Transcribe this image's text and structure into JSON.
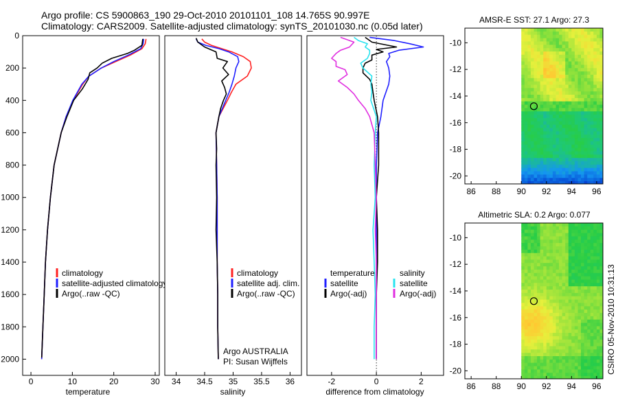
{
  "header": {
    "title_line1": "Argo profile: CS 5900863_190 29-Oct-2010 20101101_108 14.765S 90.997E",
    "title_line2": "Climatology: CARS2009. Satellite-adjusted climatology: synTS_20101030.nc (0.05d later)"
  },
  "colors": {
    "red": "#ff2020",
    "blue": "#1f1fff",
    "black": "#000000",
    "cyan": "#29e3ef",
    "magenta": "#e02ee0"
  },
  "depth_ticks": [
    "0",
    "200",
    "400",
    "600",
    "800",
    "1000",
    "1200",
    "1400",
    "1600",
    "1800",
    "2000"
  ],
  "chart_data": [
    {
      "type": "line",
      "id": "temperature",
      "xlabel": "temperature",
      "xlim": [
        -2,
        31
      ],
      "ylim": [
        2100,
        0
      ],
      "xticks": [
        "0",
        "10",
        "20",
        "30"
      ],
      "legend": [
        "climatology",
        "satellite-adjusted climatology",
        "Argo(..raw -QC)"
      ],
      "series": [
        {
          "name": "climatology",
          "color": "red",
          "depth": [
            20,
            50,
            80,
            120,
            160,
            200,
            250,
            300,
            400,
            500,
            600,
            800,
            1000,
            1200,
            1400,
            1600,
            1800,
            2000
          ],
          "x": [
            27.8,
            27.6,
            26.8,
            24.0,
            20.5,
            17.0,
            14.0,
            12.5,
            10.2,
            8.5,
            7.3,
            5.6,
            4.7,
            4.0,
            3.5,
            3.2,
            2.9,
            2.6
          ]
        },
        {
          "name": "satellite-adjusted climatology",
          "color": "blue",
          "depth": [
            20,
            50,
            80,
            120,
            160,
            200,
            250,
            300,
            400,
            500,
            600,
            800,
            1000,
            1200,
            1400,
            1600,
            1800,
            2000
          ],
          "x": [
            27.2,
            27.1,
            26.5,
            23.5,
            20.0,
            17.0,
            14.0,
            12.3,
            10.1,
            8.5,
            7.3,
            5.6,
            4.7,
            4.0,
            3.5,
            3.2,
            2.9,
            2.6
          ]
        },
        {
          "name": "Argo(..raw -QC)",
          "color": "black",
          "depth": [
            20,
            60,
            90,
            110,
            140,
            170,
            200,
            230,
            270,
            330,
            400,
            500,
            600,
            800,
            1000,
            1200,
            1400,
            1600,
            1800,
            1990
          ],
          "x": [
            27.0,
            26.8,
            25.0,
            23.3,
            19.5,
            17.2,
            16.0,
            14.2,
            13.8,
            12.4,
            10.3,
            8.7,
            7.3,
            5.6,
            4.7,
            4.0,
            3.5,
            3.2,
            2.9,
            2.6
          ]
        }
      ]
    },
    {
      "type": "line",
      "id": "salinity",
      "xlabel": "salinity",
      "xlim": [
        33.8,
        36.2
      ],
      "ylim": [
        2100,
        0
      ],
      "xticks": [
        "34",
        "34.5",
        "35",
        "35.5",
        "36"
      ],
      "legend": [
        "climatology",
        "satellite adj. clim.",
        "Argo(..raw -QC)"
      ],
      "note_line1": "Argo AUSTRALIA",
      "note_line2": "PI: Susan Wijffels",
      "series": [
        {
          "name": "climatology",
          "color": "red",
          "depth": [
            20,
            40,
            60,
            80,
            100,
            130,
            160,
            200,
            250,
            300,
            350,
            400,
            500,
            600,
            800,
            1000,
            1200,
            1400,
            1600,
            1800,
            2000
          ],
          "x": [
            34.45,
            34.5,
            34.62,
            34.8,
            34.98,
            35.18,
            35.3,
            35.32,
            35.25,
            35.05,
            34.97,
            34.9,
            34.75,
            34.7,
            34.71,
            34.72,
            34.72,
            34.72,
            34.73,
            34.73,
            34.74
          ]
        },
        {
          "name": "satellite adj. clim.",
          "color": "blue",
          "depth": [
            20,
            40,
            60,
            80,
            100,
            130,
            160,
            200,
            250,
            300,
            350,
            400,
            500,
            600,
            800,
            1000,
            1200,
            1400,
            1600,
            1800,
            2000
          ],
          "x": [
            34.35,
            34.38,
            34.52,
            34.75,
            34.92,
            35.08,
            35.1,
            35.05,
            35.02,
            34.98,
            34.93,
            34.87,
            34.75,
            34.7,
            34.71,
            34.72,
            34.72,
            34.72,
            34.73,
            34.73,
            34.74
          ]
        },
        {
          "name": "Argo(..raw -QC)",
          "color": "black",
          "depth": [
            15,
            40,
            70,
            100,
            140,
            160,
            200,
            240,
            280,
            320,
            360,
            400,
            450,
            500,
            600,
            700,
            800,
            1000,
            1200,
            1400,
            1600,
            1800,
            2000
          ],
          "x": [
            34.35,
            34.38,
            34.5,
            34.7,
            34.72,
            34.9,
            34.82,
            34.92,
            34.8,
            34.85,
            34.88,
            34.83,
            34.78,
            34.75,
            34.7,
            34.71,
            34.7,
            34.71,
            34.7,
            34.72,
            34.73,
            34.73,
            34.74
          ]
        }
      ]
    },
    {
      "type": "line",
      "id": "difference",
      "xlabel": "difference from climatology",
      "xlim": [
        -3.1,
        3.0
      ],
      "ylim": [
        2100,
        0
      ],
      "xticks": [
        "-2",
        "0",
        "2"
      ],
      "legend_temperature_title": "temperature",
      "legend_salinity_title": "salinity",
      "legend_temperature": [
        "satellite",
        "Argo(-adj)"
      ],
      "legend_salinity": [
        "satellite",
        "Argo(-adj)"
      ],
      "series": [
        {
          "name": "temperature satellite",
          "color": "blue",
          "depth": [
            10,
            30,
            50,
            70,
            90,
            110,
            130,
            160,
            200,
            250,
            300,
            400,
            500,
            600,
            800,
            1000,
            1200,
            1400,
            1600,
            1800,
            2000
          ],
          "x": [
            -0.3,
            0.8,
            1.5,
            2.1,
            1.0,
            0.55,
            0.6,
            0.45,
            0.55,
            0.6,
            0.55,
            0.3,
            0.2,
            0.05,
            0.0,
            0.0,
            0.0,
            0.0,
            0.0,
            0.0,
            0.0
          ]
        },
        {
          "name": "temperature Argo(-adj)",
          "color": "black",
          "depth": [
            10,
            40,
            70,
            85,
            100,
            120,
            150,
            170,
            200,
            230,
            270,
            300,
            350,
            400,
            500,
            600,
            800,
            1000,
            1200,
            1400,
            1600,
            1800,
            2000
          ],
          "x": [
            -0.5,
            -0.2,
            0.9,
            0.0,
            0.3,
            -0.2,
            -0.2,
            -0.5,
            -0.6,
            -0.6,
            -0.3,
            -0.2,
            -0.15,
            -0.1,
            0.05,
            0.1,
            0.1,
            0.0,
            0.05,
            0.05,
            0.0,
            0.0,
            0.0
          ]
        },
        {
          "name": "salinity satellite",
          "color": "cyan",
          "depth": [
            10,
            30,
            50,
            70,
            90,
            110,
            140,
            170,
            200,
            250,
            300,
            350,
            400,
            500,
            600,
            800,
            1000,
            1200,
            1400,
            1600,
            1800,
            2000
          ],
          "x": [
            -1.0,
            -0.8,
            -0.4,
            -0.5,
            -0.3,
            -0.3,
            -0.4,
            -0.7,
            -0.6,
            -0.2,
            -0.25,
            -0.2,
            -0.25,
            0.0,
            -0.05,
            -0.1,
            -0.05,
            -0.15,
            -0.1,
            -0.05,
            -0.1,
            -0.1
          ]
        },
        {
          "name": "salinity Argo(-adj)",
          "color": "magenta",
          "depth": [
            10,
            40,
            70,
            90,
            110,
            140,
            160,
            190,
            210,
            240,
            280,
            320,
            360,
            400,
            450,
            500,
            600,
            800,
            1000,
            1200,
            1400,
            1600,
            1800,
            2000
          ],
          "x": [
            -1.6,
            -1.0,
            -1.2,
            -1.6,
            -1.8,
            -2.0,
            -1.8,
            -1.8,
            -1.4,
            -1.3,
            -1.7,
            -1.3,
            -1.0,
            -0.8,
            -0.5,
            -0.3,
            -0.1,
            -0.05,
            0.0,
            -0.05,
            0.0,
            0.0,
            0.0,
            0.0
          ]
        }
      ]
    },
    {
      "type": "heatmap",
      "id": "sst-map",
      "title": "AMSR-E SST: 27.1 Argo: 27.3",
      "xlim": [
        85.5,
        96.5
      ],
      "ylim": [
        -20.6,
        -8.9
      ],
      "xticks": [
        "86",
        "88",
        "90",
        "92",
        "94",
        "96"
      ],
      "yticks": [
        "-10",
        "-12",
        "-14",
        "-16",
        "-18",
        "-20"
      ],
      "data_lon_start": 90,
      "marker": {
        "lon": 90.997,
        "lat": -14.765
      }
    },
    {
      "type": "heatmap",
      "id": "sla-map",
      "title": "Altimetric SLA: 0.2 Argo: 0.077",
      "xlim": [
        85.5,
        96.5
      ],
      "ylim": [
        -20.6,
        -8.9
      ],
      "xticks": [
        "86",
        "88",
        "90",
        "92",
        "94",
        "96"
      ],
      "yticks": [
        "-10",
        "-12",
        "-14",
        "-16",
        "-18",
        "-20"
      ],
      "data_lon_start": 90,
      "marker": {
        "lon": 90.997,
        "lat": -14.765
      }
    }
  ],
  "footer_stamp": "CSIRO 05-Nov-2010 10:31:13"
}
